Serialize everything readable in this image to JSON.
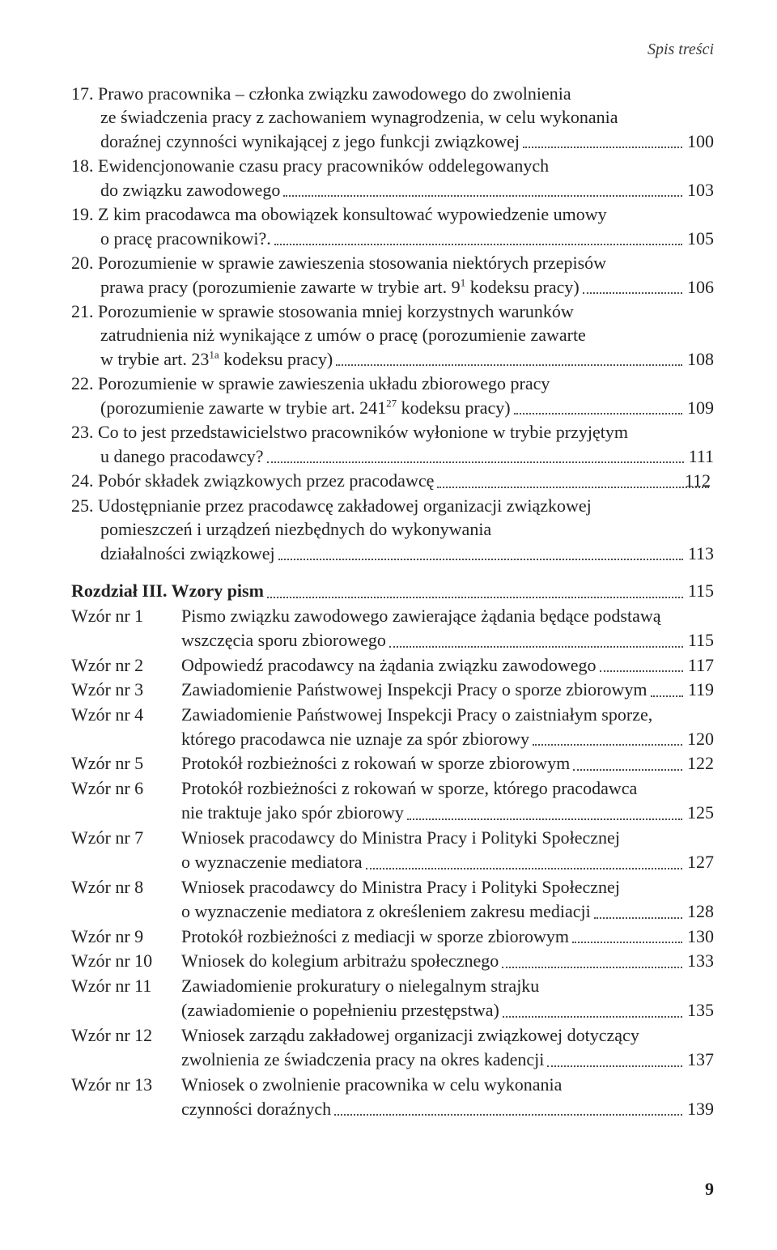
{
  "header": "Spis treści",
  "footer_page": "9",
  "numbered": [
    {
      "num": "17.",
      "lines_before": [
        "Prawo pracownika – członka związku zawodowego do zwolnienia",
        "ze świadczenia pracy z zachowaniem wynagrodzenia, w celu wykonania"
      ],
      "last_line": "doraźnej czynności wynikającej z jego funkcji związkowej",
      "page": "100"
    },
    {
      "num": "18.",
      "lines_before": [
        "Ewidencjonowanie czasu pracy pracowników oddelegowanych"
      ],
      "last_line": "do związku zawodowego",
      "page": "103"
    },
    {
      "num": "19.",
      "lines_before": [
        "Z kim pracodawca ma obowiązek konsultować wypowiedzenie umowy"
      ],
      "last_line": "o pracę pracownikowi?.",
      "page": "105"
    },
    {
      "num": "20.",
      "lines_before": [
        "Porozumienie w sprawie zawieszenia stosowania niektórych przepisów"
      ],
      "last_line_html": "prawa pracy (porozumienie zawarte w trybie art. 9<span class='sup'>1</span> kodeksu pracy)",
      "page": "106"
    },
    {
      "num": "21.",
      "lines_before": [
        "Porozumienie w sprawie stosowania mniej korzystnych warunków",
        "zatrudnienia niż wynikające z umów o pracę (porozumienie zawarte"
      ],
      "last_line_html": "w trybie art. 23<span class='sup'>1a</span> kodeksu pracy)",
      "page": "108"
    },
    {
      "num": "22.",
      "lines_before": [
        "Porozumienie w sprawie zawieszenia układu zbiorowego pracy"
      ],
      "last_line_html": "(porozumienie zawarte w trybie art. 241<span class='sup'>27</span> kodeksu pracy)",
      "page": "109"
    },
    {
      "num": "23.",
      "lines_before": [
        "Co to jest przedstawicielstwo pracowników wyłonione w trybie przyjętym"
      ],
      "last_line": "u danego pracodawcy?",
      "page": "111"
    },
    {
      "num": "24.",
      "lines_before": [],
      "last_line": "Pobór składek związkowych przez pracodawcę",
      "page": "112"
    },
    {
      "num": "25.",
      "lines_before": [
        "Udostępnianie przez pracodawcę zakładowej organizacji związkowej",
        "pomieszczeń i urządzeń niezbędnych do wykonywania"
      ],
      "last_line": "działalności związkowej",
      "page": "113"
    }
  ],
  "chapter": {
    "title": "Rozdział III. Wzory pism",
    "page": "115"
  },
  "wzory": [
    {
      "prefix": "Wzór nr 1",
      "lines_before": [
        "Pismo związku zawodowego zawierające żądania będące podstawą"
      ],
      "last_line": "wszczęcia sporu zbiorowego",
      "page": "115"
    },
    {
      "prefix": "Wzór nr 2",
      "lines_before": [],
      "last_line": "Odpowiedź pracodawcy na żądania związku zawodowego",
      "page": "117"
    },
    {
      "prefix": "Wzór nr 3",
      "lines_before": [],
      "last_line": "Zawiadomienie Państwowej Inspekcji Pracy o sporze zbiorowym ",
      "page": "119"
    },
    {
      "prefix": "Wzór nr 4",
      "lines_before": [
        "Zawiadomienie Państwowej Inspekcji Pracy o zaistniałym sporze,"
      ],
      "last_line": "którego pracodawca nie uznaje za spór zbiorowy",
      "page": "120"
    },
    {
      "prefix": "Wzór nr 5",
      "lines_before": [],
      "last_line": "Protokół rozbieżności z rokowań w sporze zbiorowym",
      "page": "122"
    },
    {
      "prefix": "Wzór nr 6",
      "lines_before": [
        "Protokół rozbieżności z rokowań w sporze, którego pracodawca"
      ],
      "last_line": "nie traktuje jako spór zbiorowy",
      "page": "125"
    },
    {
      "prefix": "Wzór nr 7",
      "lines_before": [
        "Wniosek pracodawcy do Ministra Pracy i Polityki Społecznej"
      ],
      "last_line": "o wyznaczenie mediatora",
      "page": "127"
    },
    {
      "prefix": "Wzór nr 8",
      "lines_before": [
        "Wniosek pracodawcy do Ministra Pracy i Polityki Społecznej"
      ],
      "last_line": "o wyznaczenie mediatora z określeniem zakresu mediacji",
      "page": "128"
    },
    {
      "prefix": "Wzór nr 9",
      "lines_before": [],
      "last_line": "Protokół rozbieżności z mediacji w sporze zbiorowym",
      "page": "130"
    },
    {
      "prefix": "Wzór nr 10",
      "lines_before": [],
      "last_line": "Wniosek do kolegium arbitrażu społecznego",
      "page": "133"
    },
    {
      "prefix": "Wzór nr 11",
      "lines_before": [
        "Zawiadomienie prokuratury o nielegalnym strajku"
      ],
      "last_line": "(zawiadomienie o popełnieniu przestępstwa)",
      "page": "135"
    },
    {
      "prefix": "Wzór nr 12",
      "lines_before": [
        "Wniosek zarządu zakładowej organizacji związkowej dotyczący"
      ],
      "last_line": "zwolnienia ze świadczenia pracy na okres kadencji",
      "page": "137"
    },
    {
      "prefix": "Wzór nr 13",
      "lines_before": [
        "Wniosek o zwolnienie pracownika w celu wykonania"
      ],
      "last_line": "czynności doraźnych",
      "page": "139"
    }
  ]
}
